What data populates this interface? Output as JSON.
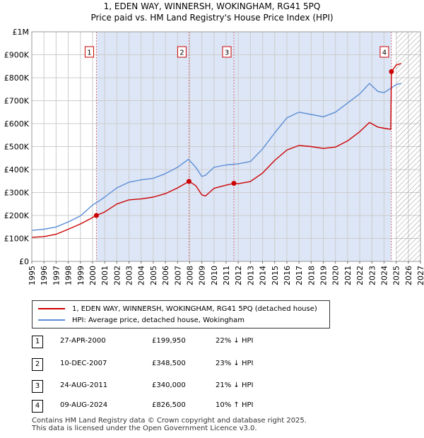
{
  "title_line1": "1, EDEN WAY, WINNERSH, WOKINGHAM, RG41 5PQ",
  "title_line2": "Price paid vs. HM Land Registry's House Price Index (HPI)",
  "colors": {
    "property": "#cc0000",
    "hpi": "#5b8ed6",
    "shade": "#dde6f6",
    "grid": "#cccccc"
  },
  "chart_data": {
    "type": "line",
    "xlim": [
      1995,
      2027
    ],
    "ylim": [
      0,
      1000000
    ],
    "y_ticks": [
      0,
      100000,
      200000,
      300000,
      400000,
      500000,
      600000,
      700000,
      800000,
      900000,
      1000000
    ],
    "y_tick_labels": [
      "£0",
      "£100K",
      "£200K",
      "£300K",
      "£400K",
      "£500K",
      "£600K",
      "£700K",
      "£800K",
      "£900K",
      "£1M"
    ],
    "x_ticks": [
      1995,
      1996,
      1997,
      1998,
      1999,
      2000,
      2001,
      2002,
      2003,
      2004,
      2005,
      2006,
      2007,
      2008,
      2009,
      2010,
      2011,
      2012,
      2013,
      2014,
      2015,
      2016,
      2017,
      2018,
      2019,
      2020,
      2021,
      2022,
      2023,
      2024,
      2025,
      2026,
      2027
    ],
    "forecast_start": 2025.0,
    "series": [
      {
        "name": "1, EDEN WAY, WINNERSH, WOKINGHAM, RG41 5PQ (detached house)",
        "x": [
          1995.0,
          1996.0,
          1997.0,
          1998.0,
          1999.0,
          1999.8,
          2000.3,
          2001.0,
          2002.0,
          2003.0,
          2004.0,
          2005.0,
          2006.0,
          2007.0,
          2007.5,
          2007.95,
          2008.5,
          2009.0,
          2009.3,
          2010.0,
          2011.0,
          2011.64,
          2012.0,
          2013.0,
          2014.0,
          2015.0,
          2016.0,
          2017.0,
          2018.0,
          2019.0,
          2020.0,
          2021.0,
          2022.0,
          2022.8,
          2023.5,
          2024.0,
          2024.55,
          2024.61,
          2025.0,
          2025.4
        ],
        "values": [
          105000,
          108000,
          118000,
          140000,
          163000,
          185000,
          199950,
          215000,
          250000,
          268000,
          272000,
          280000,
          295000,
          320000,
          335000,
          348500,
          330000,
          290000,
          285000,
          318000,
          332000,
          340000,
          338000,
          348000,
          385000,
          440000,
          485000,
          505000,
          500000,
          492000,
          498000,
          525000,
          565000,
          605000,
          585000,
          580000,
          575000,
          826500,
          855000,
          862000
        ]
      },
      {
        "name": "HPI: Average price, detached house, Wokingham",
        "x": [
          1995.0,
          1996.0,
          1997.0,
          1998.0,
          1999.0,
          2000.0,
          2000.5,
          2001.0,
          2002.0,
          2003.0,
          2004.0,
          2005.0,
          2006.0,
          2007.0,
          2007.9,
          2008.5,
          2009.0,
          2009.3,
          2010.0,
          2011.0,
          2012.0,
          2013.0,
          2014.0,
          2015.0,
          2016.0,
          2017.0,
          2018.0,
          2019.0,
          2020.0,
          2021.0,
          2022.0,
          2022.8,
          2023.5,
          2024.0,
          2024.6,
          2025.0,
          2025.4
        ],
        "values": [
          135000,
          140000,
          150000,
          172000,
          198000,
          245000,
          262000,
          280000,
          320000,
          345000,
          355000,
          362000,
          382000,
          410000,
          445000,
          410000,
          370000,
          375000,
          410000,
          420000,
          425000,
          435000,
          490000,
          560000,
          625000,
          650000,
          640000,
          630000,
          650000,
          690000,
          730000,
          775000,
          740000,
          735000,
          755000,
          770000,
          775000
        ]
      }
    ],
    "markers": [
      {
        "label": "1",
        "x": 2000.32,
        "y": 199950
      },
      {
        "label": "2",
        "x": 2007.94,
        "y": 348500
      },
      {
        "label": "3",
        "x": 2011.64,
        "y": 340000
      },
      {
        "label": "4",
        "x": 2024.61,
        "y": 826500
      }
    ]
  },
  "legend": {
    "property": "1, EDEN WAY, WINNERSH, WOKINGHAM, RG41 5PQ (detached house)",
    "hpi": "HPI: Average price, detached house, Wokingham"
  },
  "transactions": [
    {
      "num": "1",
      "date": "27-APR-2000",
      "price": "£199,950",
      "hpi": "22% ↓ HPI"
    },
    {
      "num": "2",
      "date": "10-DEC-2007",
      "price": "£348,500",
      "hpi": "23% ↓ HPI"
    },
    {
      "num": "3",
      "date": "24-AUG-2011",
      "price": "£340,000",
      "hpi": "21% ↓ HPI"
    },
    {
      "num": "4",
      "date": "09-AUG-2024",
      "price": "£826,500",
      "hpi": "10% ↑ HPI"
    }
  ],
  "footer": {
    "line1": "Contains HM Land Registry data © Crown copyright and database right 2025.",
    "line2": "This data is licensed under the Open Government Licence v3.0."
  }
}
